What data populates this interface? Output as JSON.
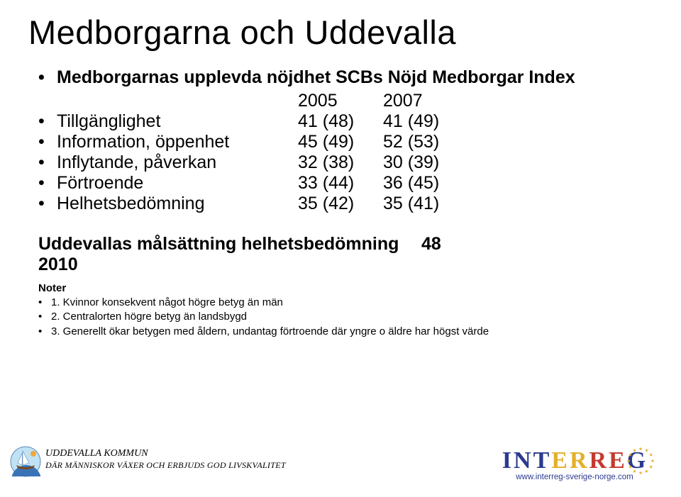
{
  "title": "Medborgarna och Uddevalla",
  "subhead": "Medborgarnas upplevda nöjdhet SCBs Nöjd Medborgar Index",
  "year_headers": [
    "2005",
    "2007"
  ],
  "rows": [
    {
      "label": "Tillgänglighet",
      "c1": "41 (48)",
      "c2": "41 (49)"
    },
    {
      "label": "Information, öppenhet",
      "c1": "45 (49)",
      "c2": "52 (53)"
    },
    {
      "label": "Inflytande, påverkan",
      "c1": "32 (38)",
      "c2": "30 (39)"
    },
    {
      "label": "Förtroende",
      "c1": "33 (44)",
      "c2": "36 (45)"
    },
    {
      "label": "Helhetsbedömning",
      "c1": "35 (42)",
      "c2": "35 (41)"
    }
  ],
  "goal": {
    "label": "Uddevallas målsättning helhetsbedömning 2010",
    "value": "48"
  },
  "notes_head": "Noter",
  "notes": [
    "1. Kvinnor konsekvent något högre betyg än män",
    "2. Centralorten högre betyg än landsbygd",
    "3. Generellt ökar betygen med åldern, undantag förtroende där yngre o äldre har högst värde"
  ],
  "footer_left": {
    "line1": "UDDEVALLA KOMMUN",
    "line2": "DÄR MÄNNISKOR VÄXER OCH ERBJUDS GOD LIVSKVALITET"
  },
  "interreg": {
    "letters": [
      "I",
      "N",
      "T",
      "E",
      "R",
      "R",
      "E",
      "G"
    ],
    "colors": [
      "c-blue",
      "c-blue",
      "c-blue",
      "c-yellow",
      "c-yellow",
      "c-red",
      "c-red",
      "c-blue"
    ],
    "sub": "www.interreg-sverige-norge.com",
    "star_color": "#e4b02a",
    "ring_color": "#2b3a8f"
  },
  "uddevalla_logo": {
    "sky": "#bfe3f4",
    "sea": "#3a74b6",
    "sail": "#ffffff",
    "hull": "#7a4a1f",
    "sun": "#f3a63a"
  }
}
